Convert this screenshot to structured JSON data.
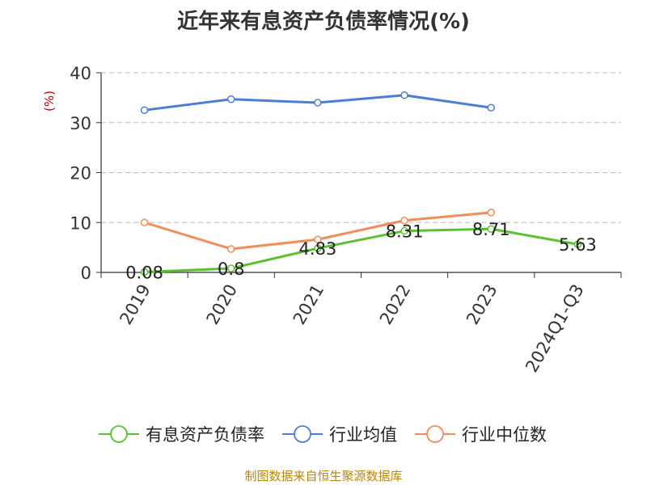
{
  "chart_data": {
    "type": "line",
    "title": "近年来有息资产负债率情况(%)",
    "ylabel": "(%)",
    "xlabel": "",
    "ylim": [
      0,
      40
    ],
    "yticks": [
      0,
      10,
      20,
      30,
      40
    ],
    "grid": true,
    "legend_position": "bottom",
    "categories": [
      "2019",
      "2020",
      "2021",
      "2022",
      "2023",
      "2024Q1-Q3"
    ],
    "series": [
      {
        "name": "有息资产负债率",
        "color": "#5ac12f",
        "values": [
          0.08,
          0.8,
          4.83,
          8.31,
          8.71,
          5.63
        ],
        "labels": [
          "0.08",
          "0.8",
          "4.83",
          "8.31",
          "8.71",
          "5.63"
        ]
      },
      {
        "name": "行业均值",
        "color": "#4a7fd6",
        "values": [
          32.5,
          34.7,
          34.0,
          35.5,
          33.0,
          null
        ]
      },
      {
        "name": "行业中位数",
        "color": "#f28c5a",
        "values": [
          10.0,
          4.7,
          6.6,
          10.4,
          12.0,
          null
        ]
      }
    ]
  },
  "source": "制图数据来自恒生聚源数据库"
}
